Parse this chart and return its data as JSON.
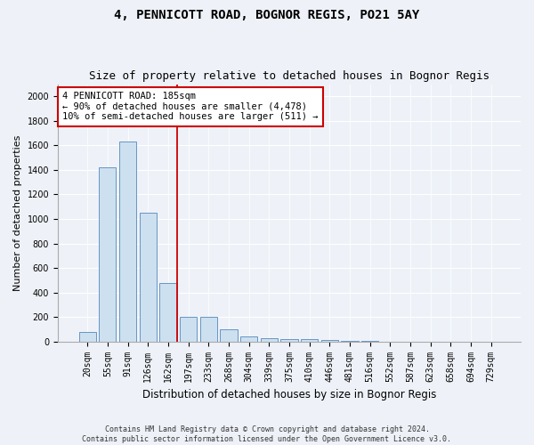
{
  "title": "4, PENNICOTT ROAD, BOGNOR REGIS, PO21 5AY",
  "subtitle": "Size of property relative to detached houses in Bognor Regis",
  "xlabel": "Distribution of detached houses by size in Bognor Regis",
  "ylabel": "Number of detached properties",
  "categories": [
    "20sqm",
    "55sqm",
    "91sqm",
    "126sqm",
    "162sqm",
    "197sqm",
    "233sqm",
    "268sqm",
    "304sqm",
    "339sqm",
    "375sqm",
    "410sqm",
    "446sqm",
    "481sqm",
    "516sqm",
    "552sqm",
    "587sqm",
    "623sqm",
    "658sqm",
    "694sqm",
    "729sqm"
  ],
  "values": [
    75,
    1420,
    1630,
    1050,
    480,
    200,
    200,
    100,
    40,
    25,
    22,
    20,
    10,
    3,
    2,
    1,
    1,
    0,
    0,
    0,
    0
  ],
  "bar_color": "#cce0f0",
  "bar_edge_color": "#5588bb",
  "vline_color": "#cc0000",
  "annotation_line1": "4 PENNICOTT ROAD: 185sqm",
  "annotation_line2": "← 90% of detached houses are smaller (4,478)",
  "annotation_line3": "10% of semi-detached houses are larger (511) →",
  "annotation_box_color": "#ffffff",
  "annotation_box_edge_color": "#cc0000",
  "ylim": [
    0,
    2100
  ],
  "yticks": [
    0,
    200,
    400,
    600,
    800,
    1000,
    1200,
    1400,
    1600,
    1800,
    2000
  ],
  "footnote_line1": "Contains HM Land Registry data © Crown copyright and database right 2024.",
  "footnote_line2": "Contains public sector information licensed under the Open Government Licence v3.0.",
  "background_color": "#eef2f8",
  "plot_background_color": "#eef2f8",
  "title_fontsize": 10,
  "subtitle_fontsize": 9,
  "xlabel_fontsize": 8.5,
  "ylabel_fontsize": 8,
  "tick_fontsize": 7,
  "annotation_fontsize": 7.5,
  "footnote_fontsize": 6
}
